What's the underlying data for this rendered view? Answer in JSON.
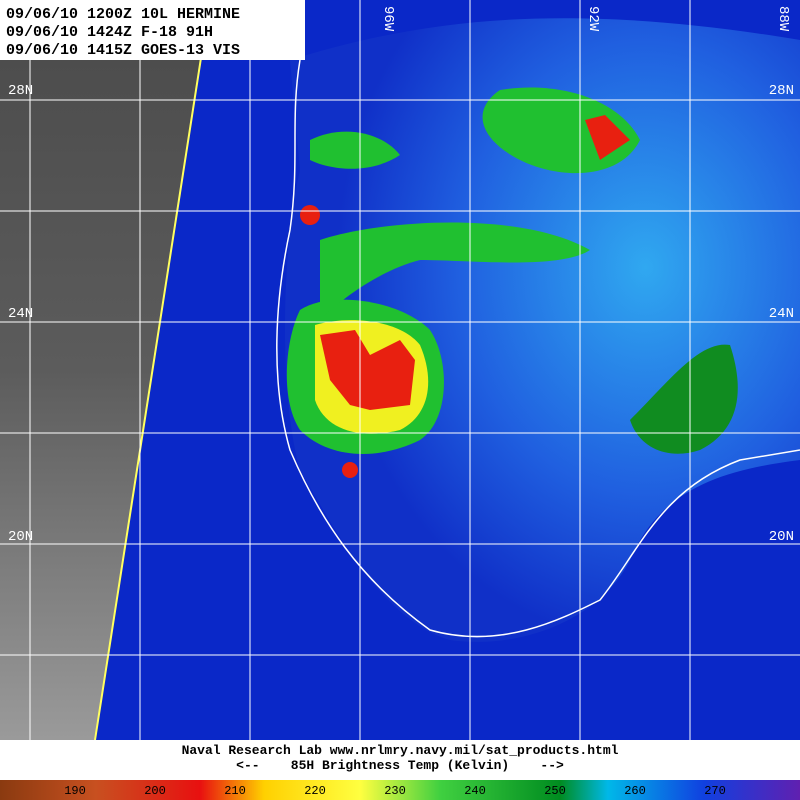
{
  "header": {
    "lines": [
      "09/06/10 1200Z 10L HERMINE",
      "09/06/10 1424Z F-18 91H",
      "09/06/10 1415Z GOES-13 VIS"
    ]
  },
  "latitude_labels": [
    "28N",
    "24N",
    "20N"
  ],
  "longitude_labels": [
    "96W",
    "92W",
    "88W"
  ],
  "footer": {
    "source": "Naval Research Lab  www.nrlmry.navy.mil/sat_products.html",
    "caption": "<--    85H Brightness Temp (Kelvin)    -->"
  },
  "colorbar": {
    "labels": [
      190,
      200,
      210,
      220,
      230,
      240,
      250,
      260,
      270
    ]
  }
}
